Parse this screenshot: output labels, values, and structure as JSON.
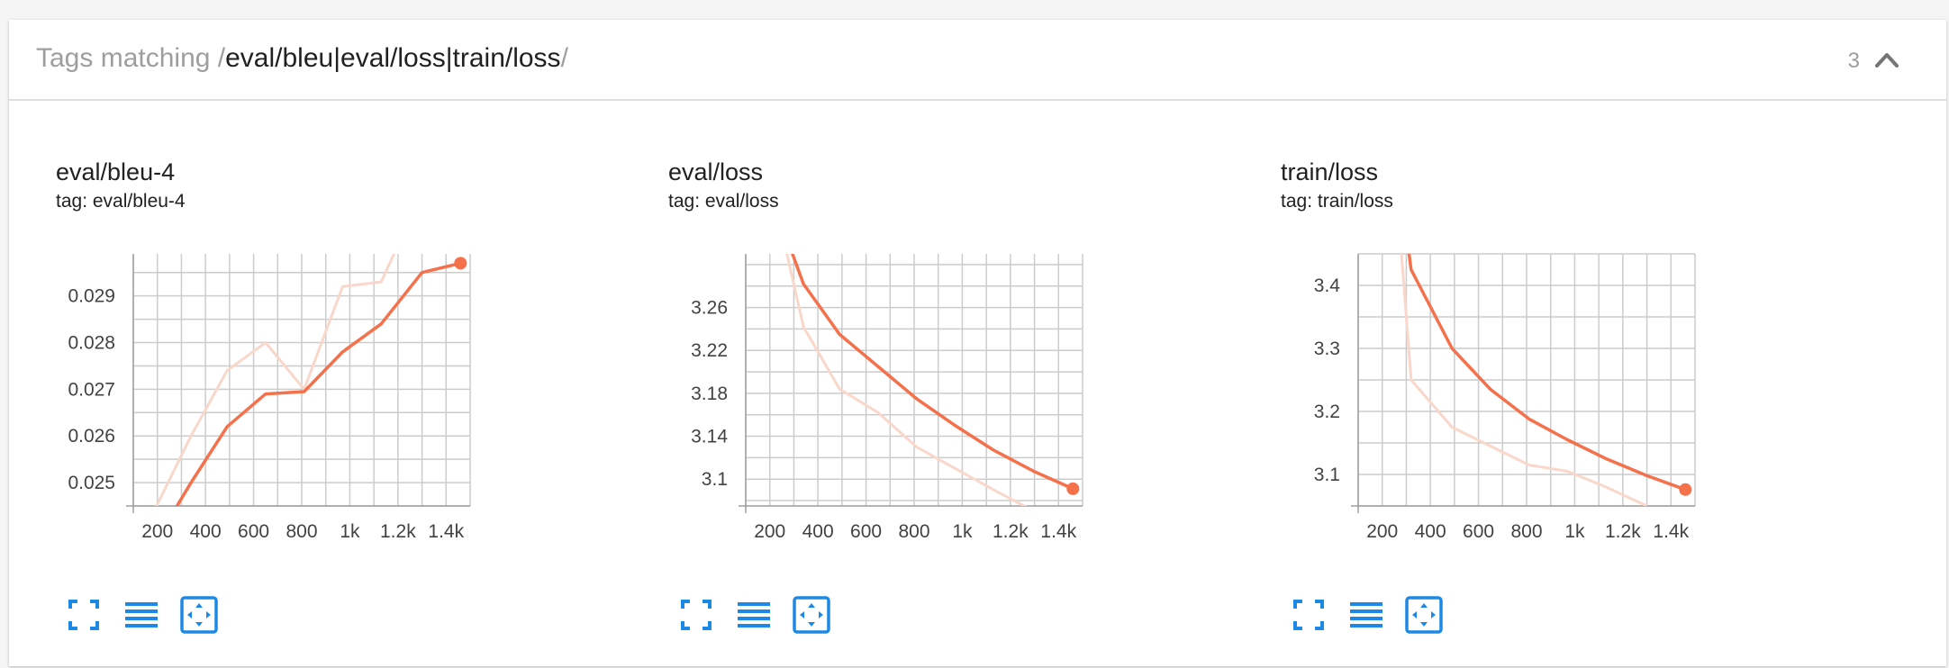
{
  "header": {
    "prefix": "Tags matching ",
    "slash_open": "/",
    "regex": "eval/bleu|eval/loss|train/loss",
    "slash_close": "/",
    "count": "3",
    "collapse_icon": "chevron-up-icon"
  },
  "colors": {
    "smoothed": "#f4714b",
    "raw": "#f9d7cb",
    "grid": "#cccccc",
    "icon": "#1e88e5"
  },
  "cards": [
    {
      "title": "eval/bleu-4",
      "tag_label": "tag: eval/bleu-4",
      "buttons": [
        "fullscreen-icon",
        "log-scale-icon",
        "fit-domain-icon"
      ]
    },
    {
      "title": "eval/loss",
      "tag_label": "tag: eval/loss",
      "buttons": [
        "fullscreen-icon",
        "log-scale-icon",
        "fit-domain-icon"
      ]
    },
    {
      "title": "train/loss",
      "tag_label": "tag: train/loss",
      "buttons": [
        "fullscreen-icon",
        "log-scale-icon",
        "fit-domain-icon"
      ]
    }
  ],
  "chart_data": [
    {
      "type": "line",
      "title": "eval/bleu-4",
      "xlabel": "",
      "ylabel": "",
      "xlim": [
        100,
        1500
      ],
      "ylim": [
        0.0245,
        0.0299
      ],
      "x_ticks": [
        200,
        400,
        600,
        800,
        1000,
        1200,
        1400
      ],
      "x_tick_labels": [
        "200",
        "400",
        "600",
        "800",
        "1k",
        "1.2k",
        "1.4k"
      ],
      "y_ticks": [
        0.025,
        0.026,
        0.027,
        0.028,
        0.029
      ],
      "y_tick_labels": [
        "0.025",
        "0.026",
        "0.027",
        "0.028",
        "0.029"
      ],
      "grid": true,
      "series": [
        {
          "style": "raw",
          "x": [
            130,
            340,
            490,
            650,
            810,
            970,
            1130,
            1300
          ],
          "y": [
            0.0238,
            0.026,
            0.0274,
            0.028,
            0.027,
            0.0292,
            0.0293,
            0.0312
          ]
        },
        {
          "style": "smoothed",
          "x": [
            130,
            340,
            490,
            650,
            810,
            970,
            1130,
            1300,
            1460
          ],
          "y": [
            0.0232,
            0.025,
            0.0262,
            0.0269,
            0.02695,
            0.0278,
            0.0284,
            0.0295,
            0.0297
          ]
        }
      ]
    },
    {
      "type": "line",
      "title": "eval/loss",
      "xlabel": "",
      "ylabel": "",
      "xlim": [
        100,
        1500
      ],
      "ylim": [
        3.075,
        3.31
      ],
      "x_ticks": [
        200,
        400,
        600,
        800,
        1000,
        1200,
        1400
      ],
      "x_tick_labels": [
        "200",
        "400",
        "600",
        "800",
        "1k",
        "1.2k",
        "1.4k"
      ],
      "y_ticks": [
        3.1,
        3.14,
        3.18,
        3.22,
        3.26
      ],
      "y_tick_labels": [
        "3.1",
        "3.14",
        "3.18",
        "3.22",
        "3.26"
      ],
      "grid": true,
      "series": [
        {
          "style": "raw",
          "x": [
            180,
            340,
            490,
            650,
            810,
            970,
            1130,
            1300
          ],
          "y": [
            3.4,
            3.242,
            3.184,
            3.162,
            3.13,
            3.11,
            3.09,
            3.07
          ]
        },
        {
          "style": "smoothed",
          "x": [
            180,
            340,
            490,
            650,
            810,
            970,
            1130,
            1300,
            1460
          ],
          "y": [
            3.38,
            3.282,
            3.235,
            3.205,
            3.175,
            3.15,
            3.127,
            3.107,
            3.091
          ]
        }
      ]
    },
    {
      "type": "line",
      "title": "train/loss",
      "xlabel": "",
      "ylabel": "",
      "xlim": [
        100,
        1500
      ],
      "ylim": [
        3.05,
        3.45
      ],
      "x_ticks": [
        200,
        400,
        600,
        800,
        1000,
        1200,
        1400
      ],
      "x_tick_labels": [
        "200",
        "400",
        "600",
        "800",
        "1k",
        "1.2k",
        "1.4k"
      ],
      "y_ticks": [
        3.1,
        3.2,
        3.3,
        3.4
      ],
      "y_tick_labels": [
        "3.1",
        "3.2",
        "3.3",
        "3.4"
      ],
      "grid": true,
      "series": [
        {
          "style": "raw",
          "x": [
            230,
            320,
            490,
            650,
            810,
            970,
            1130,
            1300
          ],
          "y": [
            3.7,
            3.25,
            3.175,
            3.145,
            3.115,
            3.105,
            3.08,
            3.05
          ]
        },
        {
          "style": "smoothed",
          "x": [
            260,
            320,
            490,
            650,
            810,
            970,
            1130,
            1300,
            1460
          ],
          "y": [
            3.6,
            3.425,
            3.3,
            3.235,
            3.188,
            3.155,
            3.125,
            3.098,
            3.076
          ]
        }
      ]
    }
  ]
}
